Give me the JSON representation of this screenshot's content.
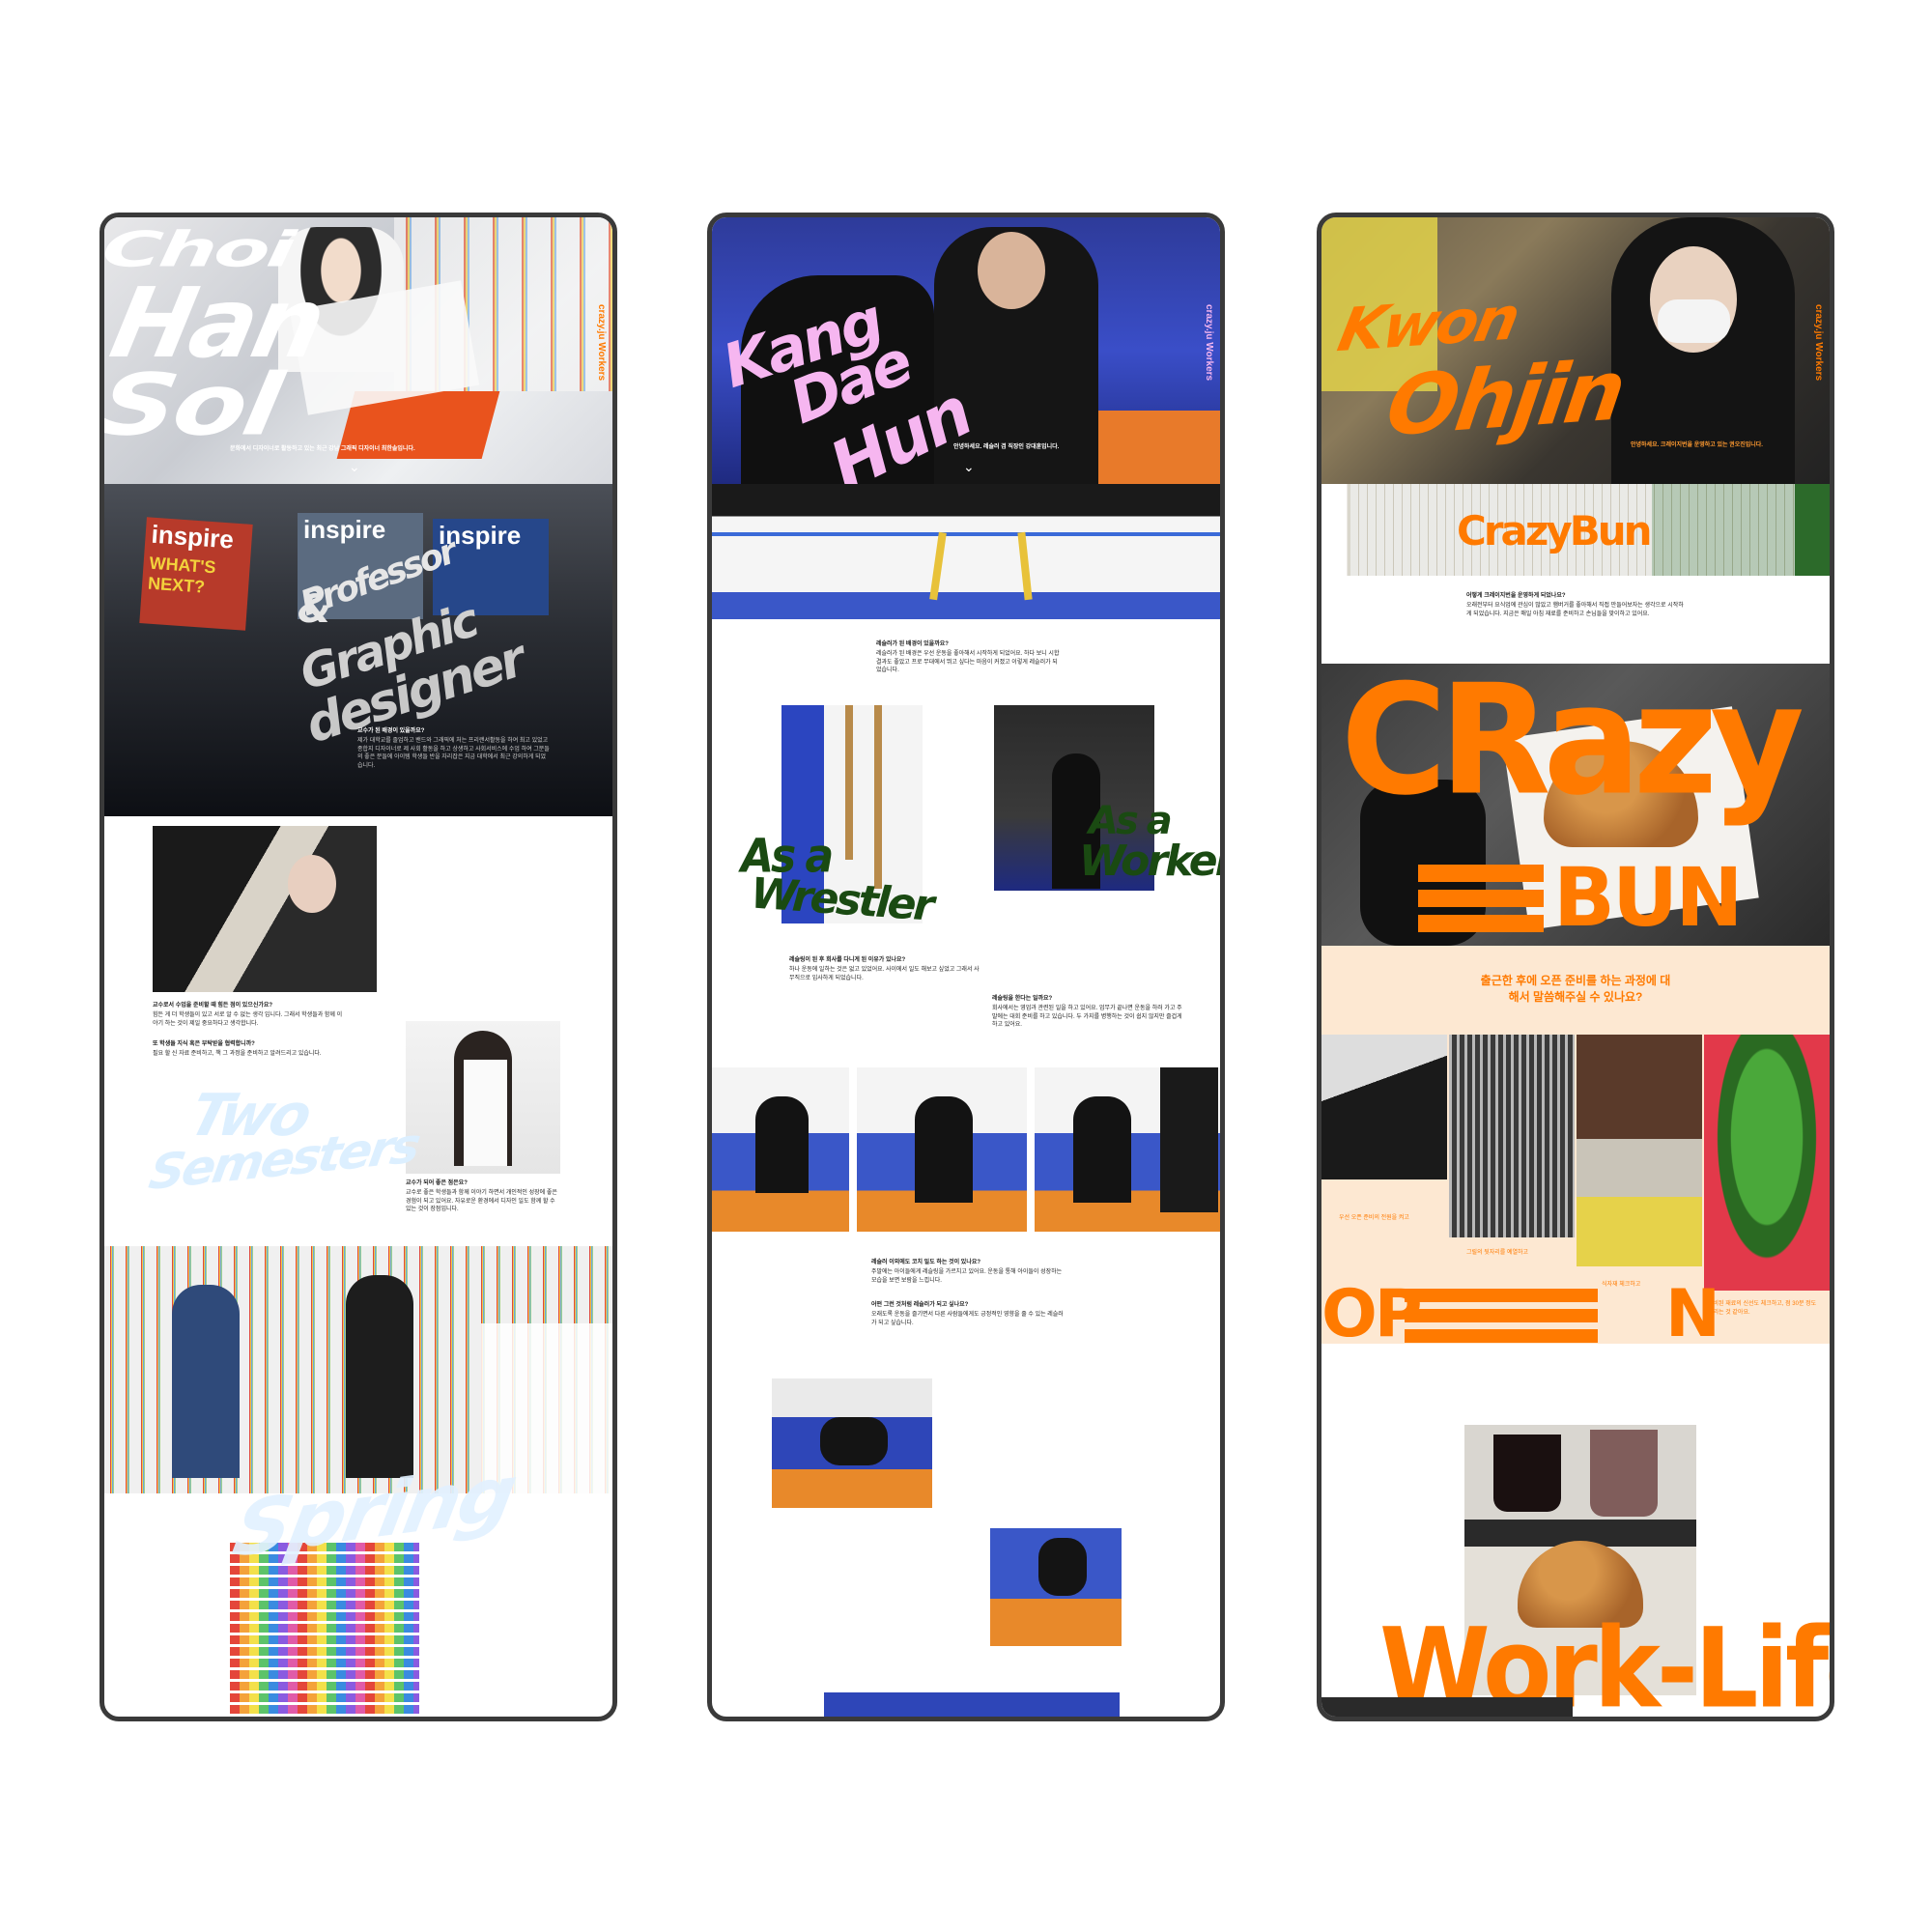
{
  "panels": [
    {
      "name": "Choi Han Sol",
      "hero_title": [
        "Choi",
        "Han",
        "Sol"
      ],
      "side_tag": "crazy.ju Workers",
      "hero_caption": "문화에서 디자이너로 활동하고 있는 최근 강남 그래픽 디자이너 최한솔입니다.",
      "scroll_icon": "chevron-down-icon",
      "role_title": [
        "Professor",
        "&",
        "Graphic",
        "designer"
      ],
      "magazines": [
        "inspire",
        "inspire",
        "inspire"
      ],
      "magazine_cover_text": "WHAT'S NEXT?",
      "q1": "교수가 된 배경이 있을까요?",
      "a1": "제가 대학교를 졸업하고 밴드와 그래픽에 처는 프리랜서활동을 하여 최고 있었고 종합지 디자이너로 제 사회 활동을 하고 상생하고 사회서비스에 수업 하여 그분들의 좋은 분들에 아이템 학생들 반을 자리잡은 지금 대학에서 최근 강의하게 되었습니다.",
      "q2": "교수로서 수업을 준비할 때 힘든 점이 있으신가요?",
      "a2": "힘든 게 더 학생들이 있고 서로 알 수 없는 생각 입니다. 그래서 학생들과 함께 이야기 하는 것이 제일 중요하다고 생각합니다.",
      "q3": "또 학생들 지식 혹은 부탁받을 협력합니까?",
      "a3": "필요 할 신 자료 준비하고, 책 그 과정을 준비하고 알려드리고 있습니다.",
      "q4": "교수가 되어 좋은 점은요?",
      "a4": "교수로 좋은 학생들과 함께 이야기 하면서 개인적인 성장에 좋은 경험이 되고 있어요. 자유로운 환경에서 디자인 일도 함께 할 수 있는 것이 장점입니다.",
      "semester_title": [
        "Two",
        "Semesters"
      ],
      "season_title": "Spring"
    },
    {
      "name": "Kang Dae Hun",
      "hero_title": [
        "Kang",
        "Dae",
        "Hun"
      ],
      "side_tag": "crazy.ju Workers",
      "hero_caption": "안녕하세요. 레슬러 겸 직장인 강대훈입니다.",
      "scroll_icon": "chevron-down-icon",
      "q1": "레슬러가 된 배경이 있을까요?",
      "a1": "레슬러가 된 배경은 우선 운동을 좋아해서 시작하게 되었어요. 하다 보니 시합 결과도 좋았고 프로 무대에서 뛰고 싶다는 마음이 커졌고 이렇게 레슬러가 되었습니다.",
      "label_wrestler": [
        "As a",
        "Wrestler"
      ],
      "label_worker": [
        "As a",
        "Worker"
      ],
      "q2": "레슬링이 된 후 회사를 다니게 된 이유가 있나요?",
      "a2": "하나 운동에 일하는 것은 없고 있었어요. 사이에서 일도 해보고 싶었고 그래서 사무직으로 입사하게 되었습니다.",
      "q3": "레슬링을 한다는 일까요?",
      "a3": "회사에서는 영업과 관련된 일을 하고 있어요. 업무가 끝나면 운동을 하러 가고 주말에는 대회 준비를 하고 있습니다. 두 가지를 병행하는 것이 쉽지 않지만 즐겁게 하고 있어요.",
      "q4": "레슬러 이외에도 코치 일도 하는 것이 있나요?",
      "a4": "주말에는 아이들에게 레슬링을 가르치고 있어요. 운동을 통해 아이들이 성장하는 모습을 보면 보람을 느낍니다.",
      "q5": "어떤 그런 것처럼 레슬러가 되고 싶나요?",
      "a5": "오래도록 운동을 즐기면서 다른 사람들에게도 긍정적인 영향을 줄 수 있는 레슬러가 되고 싶습니다."
    },
    {
      "name": "Kwon Oh Jin",
      "hero_title": [
        "Kwon",
        "Ohjin"
      ],
      "side_tag": "crazy.ju Workers",
      "hero_caption": "안녕하세요. 크레이지번을 운영하고 있는 권오진입니다.",
      "banner_title": "CrazyBun",
      "q1": "어떻게 크레이지번을 운영하게 되었나요?",
      "a1": "오래전부터 요식업에 관심이 많았고 햄버거를 좋아해서 직접 만들어보자는 생각으로 시작하게 되었습니다. 지금은 매일 아침 재료를 준비하고 손님들을 맞이하고 있어요.",
      "brand_big": [
        "CRazy",
        "BUN"
      ],
      "question_banner": "출근한 후에 오픈 준비를 하는 과정에 대해서 말씀해주실 수 있나요?",
      "step_captions": [
        "우선 오픈 준비의 전원을 켜고",
        "그릴의 뒷자리를 예열하고",
        "식자재 체크하고",
        "준비된 재료의 신선도 체크하고, 점 30분 정도 걸리는 것 같아요."
      ],
      "open_word": [
        "OP",
        "N"
      ],
      "work_life": "Work-Life"
    }
  ],
  "colors": {
    "accent_orange": "#ff7a00",
    "pink": "#f6b6f0",
    "pale_blue": "#dcefff",
    "dark_green": "#1a4a12",
    "cream": "#fde8d2",
    "frame": "#3a3a3a"
  }
}
